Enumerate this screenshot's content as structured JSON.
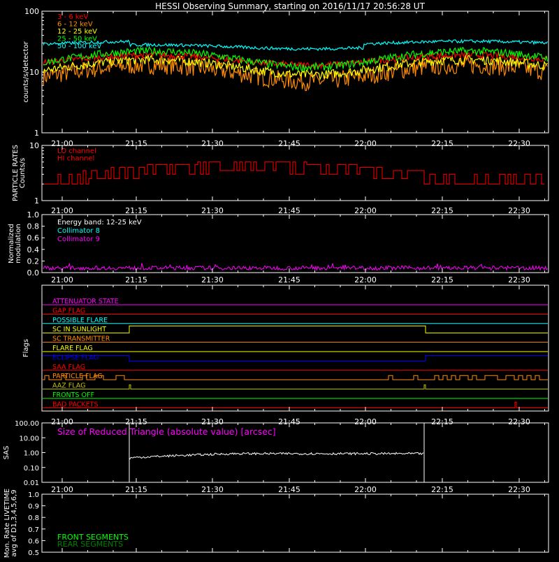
{
  "title": "HESSI Observing Summary, starting on 2016/11/17 20:56:28 UT",
  "time_ticks": [
    "21:00",
    "21:15",
    "21:30",
    "21:45",
    "22:00",
    "22:15",
    "22:30"
  ],
  "chart_data": [
    {
      "type": "line",
      "name": "count_rates",
      "ylabel": "counts/s/detector",
      "yscale": "log",
      "ylim": [
        1,
        100
      ],
      "yticks": [
        "1",
        "10",
        "100"
      ],
      "series": [
        {
          "name": "3 - 6 keV",
          "color": "#ff0000",
          "base": 13,
          "amp": 6,
          "noise": 0.12
        },
        {
          "name": "6 - 12 keV",
          "color": "#ff8c00",
          "base": 7,
          "amp": 6,
          "noise": 0.35
        },
        {
          "name": "12 - 25 keV",
          "color": "#ffff00",
          "base": 9,
          "amp": 7,
          "noise": 0.18
        },
        {
          "name": "25 - 50 keV",
          "color": "#00ff00",
          "base": 12,
          "amp": 10,
          "noise": 0.15
        },
        {
          "name": "50 - 100 keV",
          "color": "#00ffff",
          "base": 28,
          "amp": 8,
          "noise": 0.06
        }
      ]
    },
    {
      "type": "line",
      "name": "particle_rates",
      "ylabel": "PARTICLE RATES\nCounts/s",
      "yscale": "log",
      "ylim": [
        1,
        10
      ],
      "yticks": [
        "1",
        "10"
      ],
      "series": [
        {
          "name": "LO channel",
          "color": "#ff0000"
        },
        {
          "name": "HI channel",
          "color": "#ff0000"
        }
      ]
    },
    {
      "type": "line",
      "name": "modulation",
      "ylabel": "Normalized\nmodulation",
      "ylim": [
        0,
        1
      ],
      "yticks": [
        "0.0",
        "0.2",
        "0.4",
        "0.6",
        "0.8",
        "1.0"
      ],
      "annotation": "Energy band: 12-25 keV",
      "series": [
        {
          "name": "Collimator 8",
          "color": "#00ffff"
        },
        {
          "name": "Collimator 9",
          "color": "#ff00ff",
          "level": 0.08
        }
      ]
    },
    {
      "type": "line",
      "name": "flags",
      "ylabel": "Flags",
      "flags": [
        {
          "name": "ATTENUATOR STATE",
          "color": "#ff00ff"
        },
        {
          "name": "GAP FLAG",
          "color": "#ff0000"
        },
        {
          "name": "POSSIBLE FLARE",
          "color": "#00ffff"
        },
        {
          "name": "SC IN SUNLIGHT",
          "color": "#ffff00"
        },
        {
          "name": "SC TRANSMITTER",
          "color": "#ff8c00"
        },
        {
          "name": "FLARE FLAG",
          "color": "#ffff00"
        },
        {
          "name": "ECLIPSE FLAG",
          "color": "#0000ff"
        },
        {
          "name": "SAA FLAG",
          "color": "#ff0000"
        },
        {
          "name": "PARTICLE FLAG",
          "color": "#ff8c00"
        },
        {
          "name": "AAZ FLAG",
          "color": "#c0c000"
        },
        {
          "name": "FRONTS OFF",
          "color": "#00ff00"
        },
        {
          "name": "BAD PACKETS",
          "color": "#ff0000"
        }
      ]
    },
    {
      "type": "line",
      "name": "sas",
      "ylabel": "SAS",
      "yscale": "log",
      "ylim": [
        0.01,
        100
      ],
      "yticks": [
        "0.01",
        "0.10",
        "1.00",
        "10.00",
        "100.00"
      ],
      "annotation": "Size of Reduced Triangle (absolute value) [arcsec]",
      "series": [
        {
          "name": "SAS",
          "color": "#ffffff",
          "level": 0.75
        }
      ]
    },
    {
      "type": "line",
      "name": "livetime",
      "ylabel": "Mon. Rate LIVETIME\navg of D1,3,4,5,6,9",
      "ylim": [
        0.5,
        1.0
      ],
      "yticks": [
        "0.5",
        "0.6",
        "0.7",
        "0.8",
        "0.9",
        "1.0"
      ],
      "series": [
        {
          "name": "FRONT SEGMENTS",
          "color": "#00ff00"
        },
        {
          "name": "REAR SEGMENTS",
          "color": "#008000"
        }
      ]
    }
  ]
}
